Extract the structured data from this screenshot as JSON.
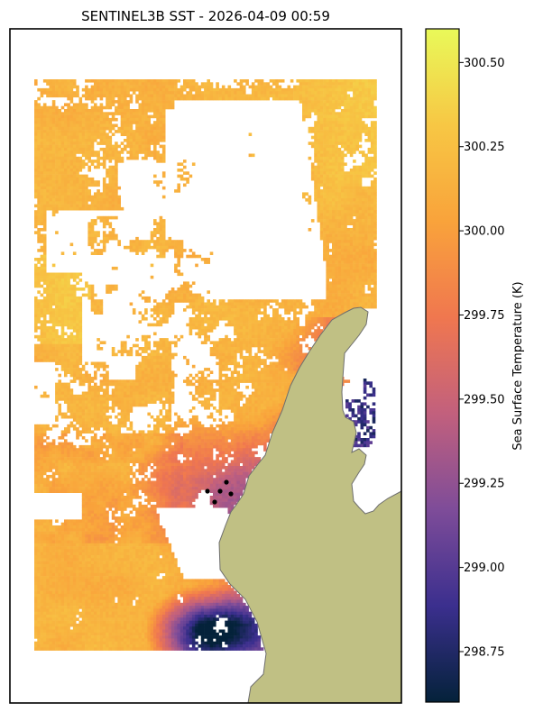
{
  "chart_data": {
    "type": "heatmap",
    "title": "SENTINEL3B SST - 2026-04-09 00:59",
    "colorbar": {
      "label": "Sea Surface Temperature (K)",
      "ticks": [
        "298.75",
        "299.00",
        "299.25",
        "299.50",
        "299.75",
        "300.00",
        "300.25",
        "300.50"
      ],
      "tick_values": [
        298.75,
        299.0,
        299.25,
        299.5,
        299.75,
        300.0,
        300.25,
        300.5
      ],
      "range": [
        298.6,
        300.6
      ],
      "colormap": "thermal",
      "colormap_stops": [
        "#04223a",
        "#3b2f8e",
        "#7e4c99",
        "#c2607d",
        "#f0774f",
        "#f9a33b",
        "#f7c744",
        "#e9f959"
      ]
    },
    "land_color": "#c0c084",
    "land_edge_color": "#6e6e6e",
    "mask_color": "#ffffff",
    "markers": {
      "count": 5,
      "color": "#000000"
    },
    "data_summary": {
      "north_band": "warm 300.2-300.6 K, warmest (yellow) in north-east",
      "central_band": "mostly 299.9-300.3 K with patchy cloud gaps",
      "near_coast_south": "cooler 299.2-299.5 K near markers",
      "south_pocket": "coldest 298.6-299.0 K near southern coast",
      "eastern_inlet": "cold 298.7-299.0 K pixels in small bay"
    }
  }
}
